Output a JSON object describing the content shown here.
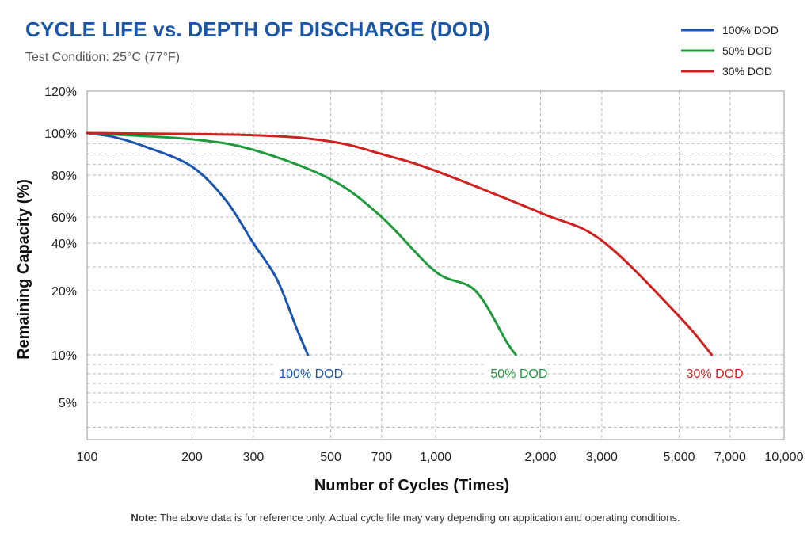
{
  "header": {
    "title": "CYCLE LIFE vs. DEPTH OF DISCHARGE (DOD)",
    "subtitle": "Test Condition: 25°C (77°F)"
  },
  "footer": {
    "note_label": "Note:",
    "note_text": " The above data is for reference only. Actual cycle life may vary depending on application and operating conditions."
  },
  "colors": {
    "blue": "#1a56b0",
    "green": "#1f9a3c",
    "red": "#d0201f",
    "grid": "#b8b8b8"
  },
  "chart_data": {
    "type": "line",
    "title": "CYCLE LIFE vs. DEPTH OF DISCHARGE (DOD)",
    "subtitle": "Test Condition: 25°C (77°F)",
    "xlabel": "Number of Cycles (Times)",
    "ylabel": "Remaining Capacity (%)",
    "x_scale": "log",
    "xlim": [
      100,
      10000
    ],
    "x_ticks": [
      100,
      200,
      300,
      500,
      700,
      1000,
      2000,
      3000,
      5000,
      7000,
      10000
    ],
    "x_tick_labels": [
      "100",
      "200",
      "300",
      "500",
      "700",
      "1,000",
      "2,000",
      "3,000",
      "5,000",
      "7,000",
      "10,000"
    ],
    "y_ticks": [
      "120%",
      "100%",
      "80%",
      "60%",
      "40%",
      "20%",
      "10%",
      "5%"
    ],
    "grid": true,
    "legend_position": "top-right",
    "series": [
      {
        "name": "100% DOD",
        "color": "#1a56b0",
        "x": [
          100,
          120,
          150,
          200,
          250,
          300,
          350,
          400,
          430
        ],
        "y": [
          "100%",
          "98%",
          "93%",
          "84%",
          "68%",
          "40%",
          "25%",
          "14%",
          "10%"
        ]
      },
      {
        "name": "50% DOD",
        "color": "#1f9a3c",
        "x": [
          100,
          200,
          300,
          500,
          700,
          1000,
          1300,
          1600,
          1700
        ],
        "y": [
          "100%",
          "97%",
          "92%",
          "78%",
          "60%",
          "28%",
          "20%",
          "12%",
          "10%"
        ]
      },
      {
        "name": "30% DOD",
        "color": "#d0201f",
        "x": [
          100,
          300,
          500,
          700,
          1000,
          2000,
          3000,
          5000,
          6200
        ],
        "y": [
          "100%",
          "99%",
          "96%",
          "90%",
          "82%",
          "62%",
          "42%",
          "16%",
          "10%"
        ]
      }
    ],
    "annotations": [
      "100% DOD",
      "50% DOD",
      "30% DOD"
    ]
  }
}
